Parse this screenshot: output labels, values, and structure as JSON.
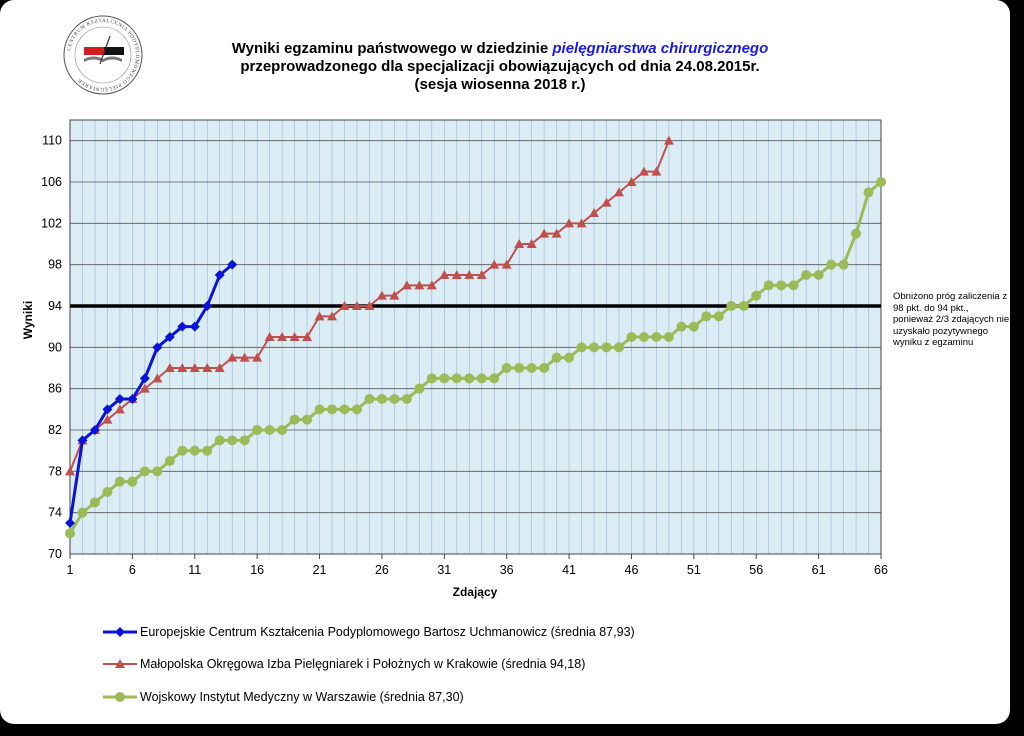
{
  "title": {
    "line1_pre": "Wyniki egzaminu państwowego w dziedzinie ",
    "line1_em": "pielęgniarstwa  chirurgicznego",
    "line2": "przeprowadzonego dla specjalizacji obowiązujących od dnia 24.08.2015r.",
    "line3": "(sesja wiosenna 2018 r.)"
  },
  "logo": {
    "icon": "book-and-quill-seal",
    "text": "CENTRUM KSZTAŁCENIA PODYPLOMOWEGO PIELĘGNIAREK"
  },
  "note": "Obniżono próg zaliczenia z 98 pkt. do 94 pkt., ponieważ 2/3 zdających nie uzyskało pozytywnego wyniku z egzaminu",
  "chart_data": {
    "type": "line",
    "xlabel": "Zdający",
    "ylabel": "Wyniki",
    "xlim": [
      1,
      66
    ],
    "ylim": [
      70,
      112
    ],
    "x_ticks": [
      1,
      6,
      11,
      16,
      21,
      26,
      31,
      36,
      41,
      46,
      51,
      56,
      61,
      66
    ],
    "y_ticks": [
      70,
      74,
      78,
      82,
      86,
      90,
      94,
      98,
      102,
      106,
      110
    ],
    "threshold": 94,
    "grid": true,
    "legend_position": "bottom",
    "series": [
      {
        "name": "Europejskie Centrum Kształcenia Podyplomowego Bartosz Uchmanowicz (średnia 87,93)",
        "color": "#0a14d8",
        "marker": "diamond",
        "values": [
          73,
          81,
          82,
          84,
          85,
          85,
          87,
          90,
          91,
          92,
          92,
          94,
          97,
          98
        ]
      },
      {
        "name": "Małopolska Okręgowa Izba Pielęgniarek i Położnych w Krakowie (średnia 94,18)",
        "color": "#c0504d",
        "marker": "triangle",
        "values": [
          78,
          81,
          82,
          83,
          84,
          85,
          86,
          87,
          88,
          88,
          88,
          88,
          88,
          89,
          89,
          89,
          91,
          91,
          91,
          91,
          93,
          93,
          94,
          94,
          94,
          95,
          95,
          96,
          96,
          96,
          97,
          97,
          97,
          97,
          98,
          98,
          100,
          100,
          101,
          101,
          102,
          102,
          103,
          104,
          105,
          106,
          107,
          107,
          110
        ]
      },
      {
        "name": "Wojskowy Instytut Medyczny w Warszawie (średnia 87,30)",
        "color": "#9bbb59",
        "marker": "circle",
        "values": [
          72,
          74,
          75,
          76,
          77,
          77,
          78,
          78,
          79,
          80,
          80,
          80,
          81,
          81,
          81,
          82,
          82,
          82,
          83,
          83,
          84,
          84,
          84,
          84,
          85,
          85,
          85,
          85,
          86,
          87,
          87,
          87,
          87,
          87,
          87,
          88,
          88,
          88,
          88,
          89,
          89,
          90,
          90,
          90,
          90,
          91,
          91,
          91,
          91,
          92,
          92,
          93,
          93,
          94,
          94,
          95,
          96,
          96,
          96,
          97,
          97,
          98,
          98,
          101,
          105,
          106
        ]
      }
    ]
  }
}
